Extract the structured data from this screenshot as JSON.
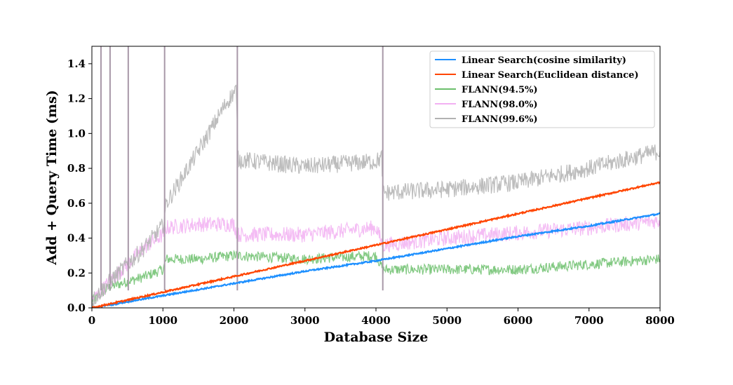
{
  "chart_data": {
    "type": "line",
    "title": "",
    "xlabel": "Database Size",
    "ylabel": "Add + Query Time (ms)",
    "xlim": [
      0,
      8000
    ],
    "ylim": [
      0,
      1.5
    ],
    "xticks": [
      0,
      1000,
      2000,
      3000,
      4000,
      5000,
      6000,
      7000,
      8000
    ],
    "xtick_labels": [
      "0",
      "1000",
      "2000",
      "3000",
      "4000",
      "5000",
      "6000",
      "7000",
      "8000"
    ],
    "yticks": [
      0.0,
      0.2,
      0.4,
      0.6,
      0.8,
      1.0,
      1.2,
      1.4
    ],
    "ytick_labels": [
      "0.0",
      "0.2",
      "0.4",
      "0.6",
      "0.8",
      "1.0",
      "1.2",
      "1.4"
    ],
    "grid": false,
    "legend_position": "top-right",
    "series": [
      {
        "name": "Linear Search(cosine similarity)",
        "color": "#1E90FF",
        "x": [
          0,
          1000,
          2000,
          3000,
          4000,
          5000,
          6000,
          7000,
          8000
        ],
        "y": [
          0.0,
          0.07,
          0.14,
          0.21,
          0.27,
          0.34,
          0.41,
          0.47,
          0.54
        ],
        "spikes": []
      },
      {
        "name": "Linear Search(Euclidean distance)",
        "color": "#FF4500",
        "x": [
          0,
          1000,
          2000,
          3000,
          4000,
          5000,
          6000,
          7000,
          8000
        ],
        "y": [
          0.0,
          0.09,
          0.18,
          0.27,
          0.36,
          0.45,
          0.54,
          0.63,
          0.72
        ],
        "spikes": []
      },
      {
        "name": "FLANN(94.5%)",
        "color": "#6CBF6C",
        "x": [
          0,
          250,
          500,
          750,
          1000,
          1050,
          1500,
          2000,
          2050,
          3000,
          4000,
          4100,
          5000,
          6000,
          7000,
          8000
        ],
        "y": [
          0.04,
          0.12,
          0.15,
          0.18,
          0.22,
          0.28,
          0.28,
          0.3,
          0.3,
          0.28,
          0.3,
          0.22,
          0.22,
          0.22,
          0.25,
          0.28
        ],
        "spikes": []
      },
      {
        "name": "FLANN(98.0%)",
        "color": "#F2B0F2",
        "x": [
          0,
          250,
          500,
          750,
          1000,
          1050,
          1500,
          2000,
          2050,
          3000,
          4000,
          4100,
          5000,
          6000,
          7000,
          8000
        ],
        "y": [
          0.04,
          0.15,
          0.25,
          0.35,
          0.42,
          0.46,
          0.48,
          0.48,
          0.42,
          0.42,
          0.46,
          0.36,
          0.4,
          0.43,
          0.46,
          0.5
        ],
        "spikes": []
      },
      {
        "name": "FLANN(99.6%)",
        "color": "#B2B2B2",
        "x": [
          0,
          250,
          500,
          750,
          1000,
          1050,
          1500,
          1900,
          2030,
          2060,
          3000,
          4000,
          4080,
          4100,
          5000,
          6000,
          7000,
          8000
        ],
        "y": [
          0.04,
          0.15,
          0.25,
          0.35,
          0.47,
          0.6,
          0.9,
          1.18,
          1.25,
          0.85,
          0.81,
          0.84,
          0.86,
          0.66,
          0.68,
          0.72,
          0.8,
          0.9
        ],
        "spikes": [
          128,
          256,
          512,
          1024,
          2048,
          4096
        ]
      }
    ]
  }
}
